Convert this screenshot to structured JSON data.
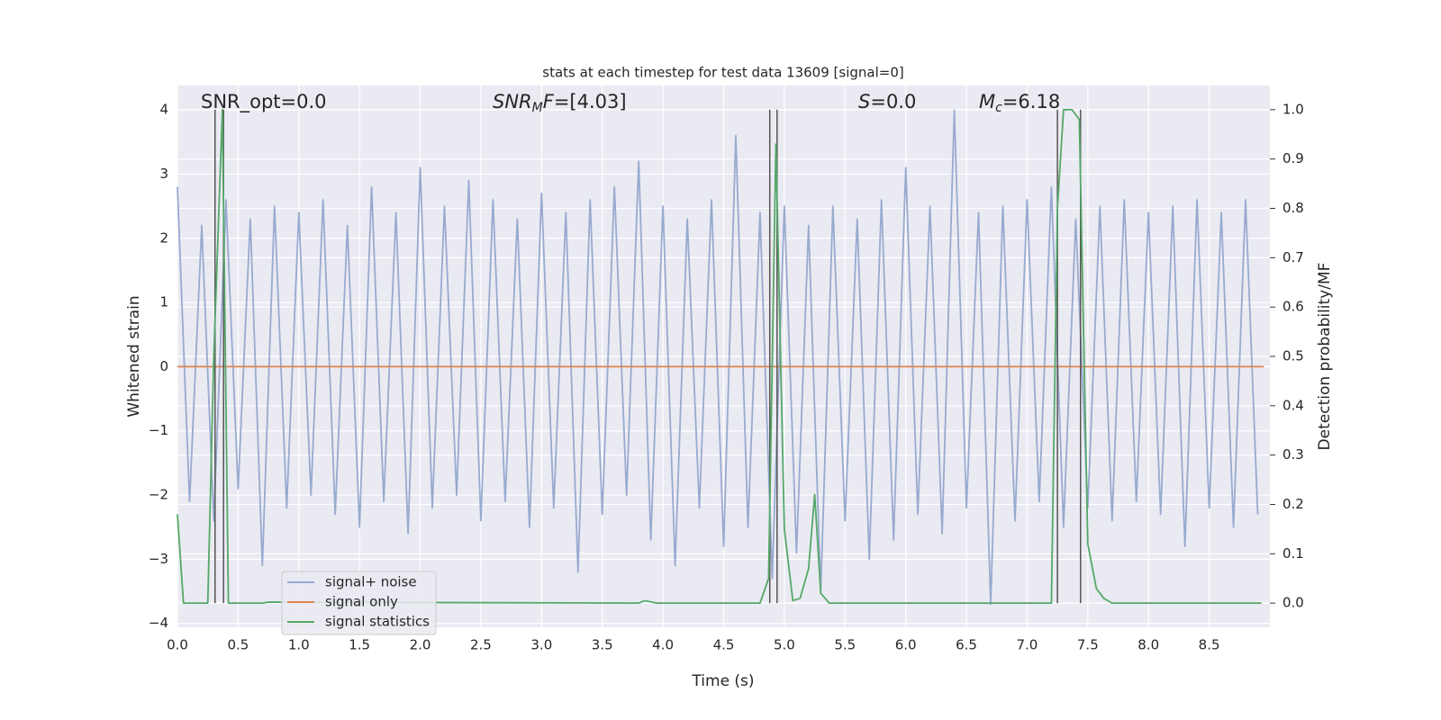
{
  "chart_data": {
    "type": "line",
    "title": "stats at each timestep for test data 13609 [signal=0]",
    "xlabel": "Time (s)",
    "ylabel": "Whitened strain",
    "y2label": "Detection probability/MF",
    "annotations": [
      [
        {
          "text": "SNR_opt=0.0"
        }
      ],
      [
        {
          "text": "SNR",
          "italic": true
        },
        {
          "text": "M",
          "italic": true,
          "sub": true
        },
        {
          "text": "F",
          "italic": true
        },
        {
          "text": "=[4.03]"
        }
      ],
      [
        {
          "text": "S",
          "italic": true
        },
        {
          "text": "=0.0"
        }
      ],
      [
        {
          "text": "M",
          "italic": true
        },
        {
          "text": "c",
          "italic": true,
          "sub": true
        },
        {
          "text": "=6.18"
        }
      ]
    ],
    "xlim": [
      0,
      9.0
    ],
    "ylim": [
      -4.06,
      4.38
    ],
    "y2lim": [
      -0.049,
      1.049
    ],
    "xticks": [
      {
        "value": 0,
        "label": "0.0"
      },
      0.5,
      {
        "value": 1,
        "label": "1.0"
      },
      1.5,
      {
        "value": 2,
        "label": "2.0"
      },
      2.5,
      {
        "value": 3,
        "label": "3.0"
      },
      3.5,
      {
        "value": 4,
        "label": "4.0"
      },
      4.5,
      {
        "value": 5,
        "label": "5.0"
      },
      5.5,
      {
        "value": 6,
        "label": "6.0"
      },
      6.5,
      {
        "value": 7,
        "label": "7.0"
      },
      7.5,
      {
        "value": 8,
        "label": "8.0"
      },
      8.5
    ],
    "yticks": [
      {
        "value": -4,
        "label": "−4"
      },
      {
        "value": -3,
        "label": "−3"
      },
      {
        "value": -2,
        "label": "−2"
      },
      {
        "value": -1,
        "label": "−1"
      },
      0,
      1,
      2,
      3,
      4
    ],
    "y2ticks": [
      {
        "value": 0,
        "label": "0.0"
      },
      0.1,
      0.2,
      0.3,
      0.4,
      0.5,
      0.6,
      0.7,
      0.8,
      0.9,
      {
        "value": 1,
        "label": "1.0"
      }
    ],
    "grid": true,
    "legend": "lower left",
    "vlines": [
      0.31,
      0.38,
      4.88,
      4.94,
      7.25,
      7.44
    ],
    "vline_color": "#555555",
    "series": [
      {
        "name": "signal+ noise",
        "color": "#98aacf",
        "x": [
          0.0,
          0.1,
          0.2,
          0.3,
          0.4,
          0.5,
          0.6,
          0.7,
          0.8,
          0.9,
          1.0,
          1.1,
          1.2,
          1.3,
          1.4,
          1.5,
          1.6,
          1.7,
          1.8,
          1.9,
          2.0,
          2.1,
          2.2,
          2.3,
          2.4,
          2.5,
          2.6,
          2.7,
          2.8,
          2.9,
          3.0,
          3.1,
          3.2,
          3.3,
          3.4,
          3.5,
          3.6,
          3.7,
          3.8,
          3.9,
          4.0,
          4.1,
          4.2,
          4.3,
          4.4,
          4.5,
          4.6,
          4.7,
          4.8,
          4.9,
          5.0,
          5.1,
          5.2,
          5.3,
          5.4,
          5.5,
          5.6,
          5.7,
          5.8,
          5.9,
          6.0,
          6.1,
          6.2,
          6.3,
          6.4,
          6.5,
          6.6,
          6.7,
          6.8,
          6.9,
          7.0,
          7.1,
          7.2,
          7.3,
          7.4,
          7.5,
          7.6,
          7.7,
          7.8,
          7.9,
          8.0,
          8.1,
          8.2,
          8.3,
          8.4,
          8.5,
          8.6,
          8.7,
          8.8,
          8.9
        ],
        "values": [
          2.8,
          -2.1,
          2.2,
          -2.4,
          2.6,
          -1.9,
          2.3,
          -3.1,
          2.5,
          -2.2,
          2.4,
          -2.0,
          2.6,
          -2.3,
          2.2,
          -2.5,
          2.8,
          -2.1,
          2.4,
          -2.6,
          3.1,
          -2.2,
          2.5,
          -2.0,
          2.9,
          -2.4,
          2.6,
          -2.1,
          2.3,
          -2.5,
          2.7,
          -2.2,
          2.4,
          -3.2,
          2.6,
          -2.3,
          2.8,
          -2.0,
          3.2,
          -2.7,
          2.5,
          -3.1,
          2.3,
          -2.2,
          2.6,
          -2.8,
          3.6,
          -2.5,
          2.4,
          -3.3,
          2.5,
          -2.9,
          2.2,
          -3.5,
          2.5,
          -2.4,
          2.3,
          -3.0,
          2.6,
          -2.7,
          3.1,
          -2.3,
          2.5,
          -2.6,
          4.0,
          -2.2,
          2.4,
          -3.7,
          2.5,
          -2.4,
          2.6,
          -2.1,
          2.8,
          -2.5,
          2.3,
          -2.2,
          2.5,
          -2.4,
          2.6,
          -2.1,
          2.4,
          -2.3,
          2.5,
          -2.8,
          2.6,
          -2.2,
          2.4,
          -2.5,
          2.6,
          -2.3
        ]
      },
      {
        "name": "signal only",
        "color": "#dd8452",
        "x": [
          0.0,
          8.95
        ],
        "values": [
          0,
          0
        ]
      },
      {
        "name": "signal statistics",
        "color": "#55a868",
        "axis": "y2",
        "x": [
          0.0,
          0.05,
          0.25,
          0.3,
          0.37,
          0.42,
          0.7,
          0.75,
          3.8,
          3.85,
          3.95,
          4.8,
          4.87,
          4.93,
          5.0,
          5.07,
          5.13,
          5.2,
          5.25,
          5.3,
          5.37,
          7.2,
          7.25,
          7.3,
          7.37,
          7.43,
          7.5,
          7.57,
          7.63,
          7.7,
          8.93
        ],
        "values": [
          0.18,
          0.0,
          0.0,
          0.5,
          1.0,
          0.0,
          0.0,
          0.002,
          0.0,
          0.005,
          0.0,
          0.0,
          0.05,
          0.93,
          0.15,
          0.005,
          0.01,
          0.07,
          0.22,
          0.02,
          0.0,
          0.0,
          0.8,
          1.0,
          1.0,
          0.98,
          0.12,
          0.03,
          0.01,
          0.0,
          0.0
        ]
      }
    ]
  }
}
